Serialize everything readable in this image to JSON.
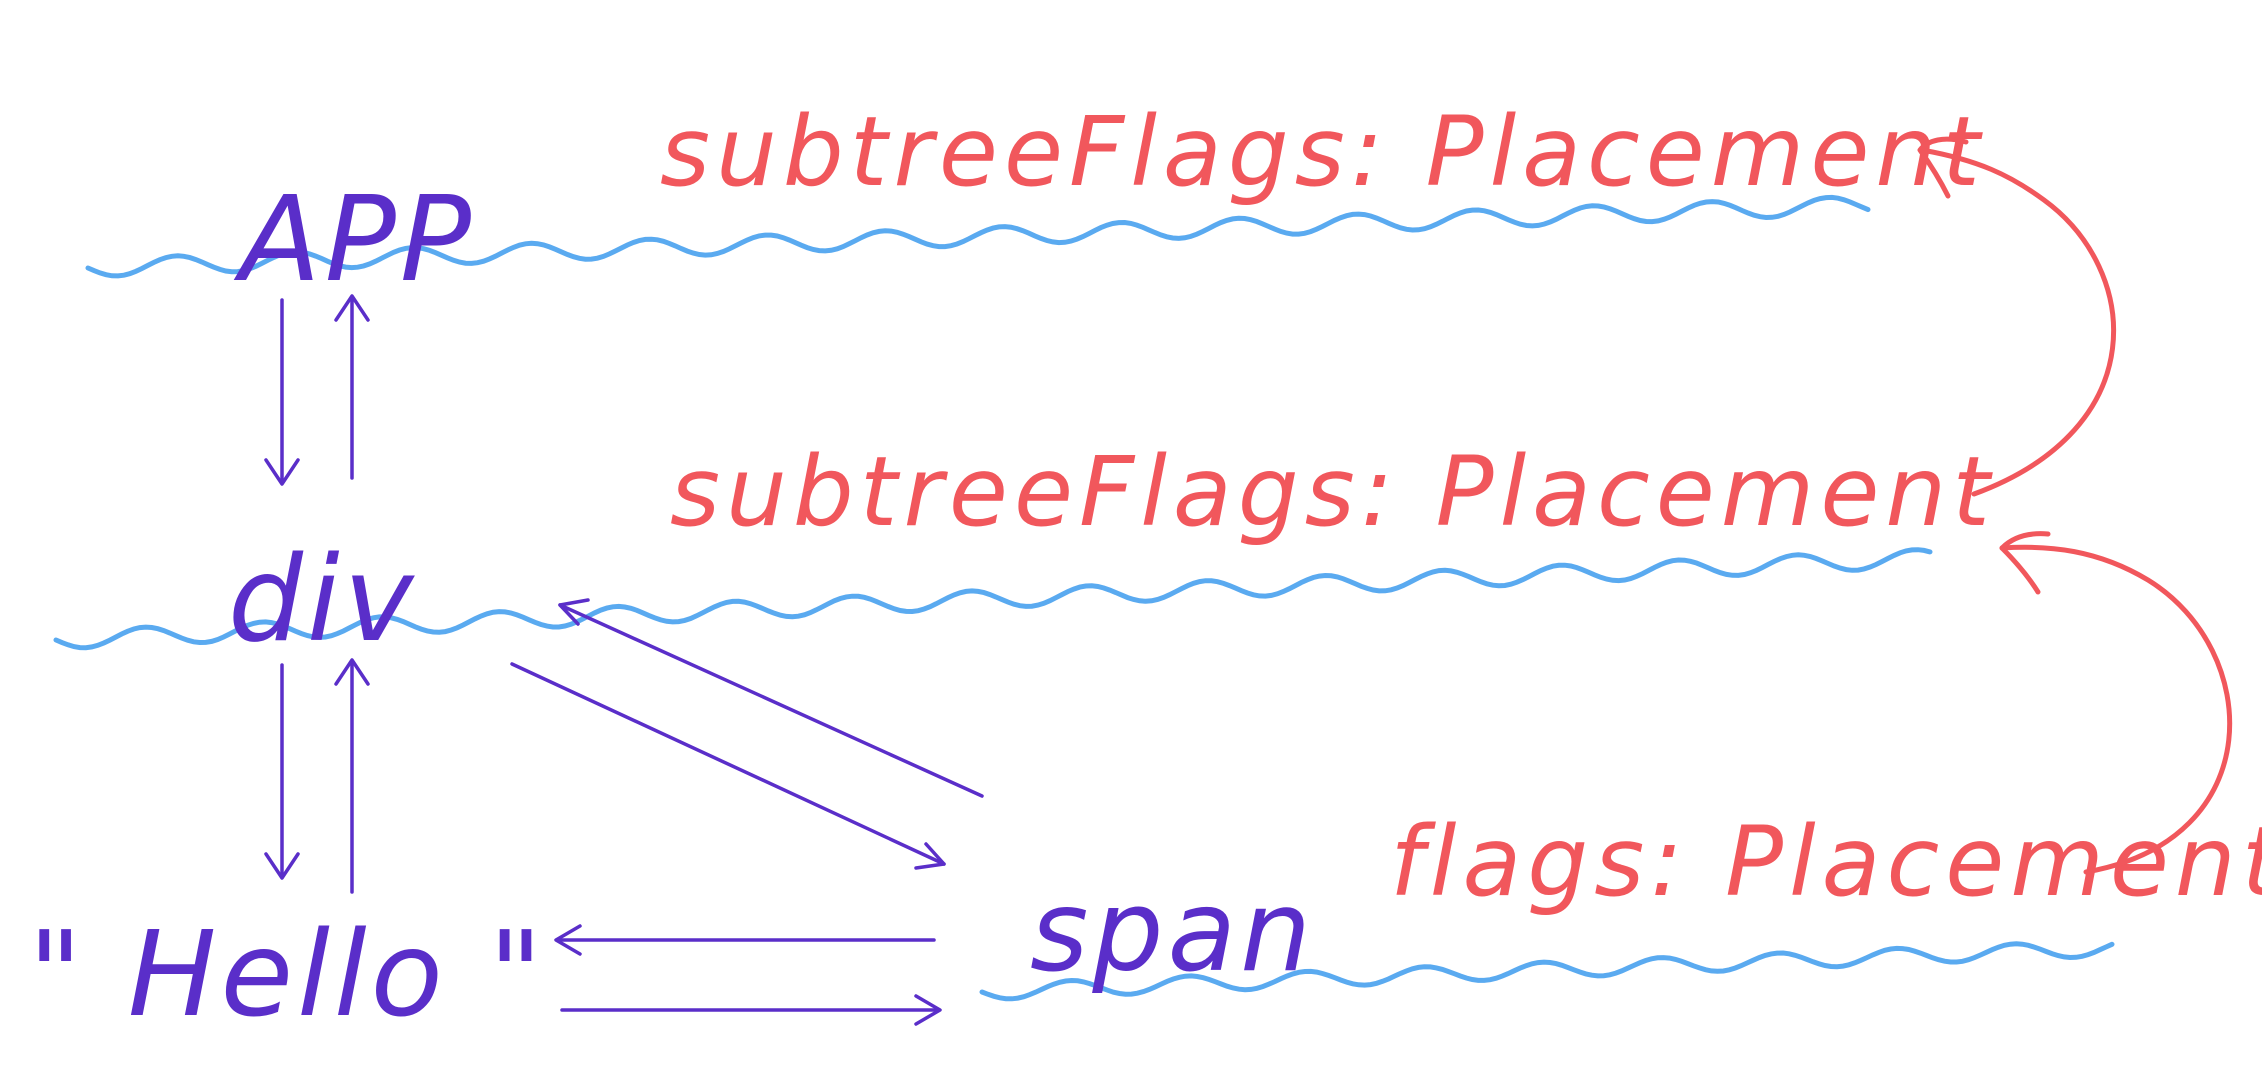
{
  "nodes": {
    "app": "APP",
    "div": "div",
    "hello": "\" Hello \"",
    "span": "span"
  },
  "flags": {
    "app_subtree": "subtreeFlags: Placement",
    "div_subtree": "subtreeFlags: Placement",
    "span_flags": "flags: Placement"
  },
  "colors": {
    "node_ink": "#5a2ec9",
    "flag_ink": "#f1575c",
    "underline_wave": "#5aaaf0",
    "background": "#ffffff"
  }
}
